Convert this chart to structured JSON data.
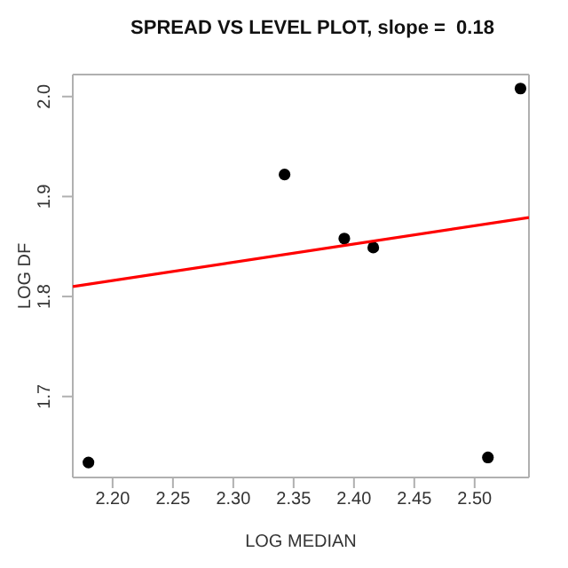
{
  "chart_data": {
    "type": "scatter",
    "title": "SPREAD VS LEVEL PLOT, slope =  0.18",
    "xlabel": "LOG MEDIAN",
    "ylabel": "LOG DF",
    "x": [
      2.18,
      2.3425,
      2.392,
      2.416,
      2.511,
      2.538
    ],
    "series": [
      {
        "color": "#000000",
        "marker": "circle",
        "values": [
          1.634,
          1.922,
          1.858,
          1.849,
          1.639,
          2.008
        ]
      },
      {
        "type": "line",
        "color": "#ff0000",
        "marker": "none",
        "x": [
          2.167,
          2.545
        ],
        "values": [
          1.81,
          1.879
        ]
      }
    ],
    "xlim": [
      2.167,
      2.545
    ],
    "ylim": [
      1.619,
      2.022
    ],
    "xticks": [
      {
        "value": 2.2,
        "label": "2.20"
      },
      {
        "value": 2.25,
        "label": "2.25"
      },
      {
        "value": 2.3,
        "label": "2.30"
      },
      {
        "value": 2.35,
        "label": "2.35"
      },
      {
        "value": 2.4,
        "label": "2.40"
      },
      {
        "value": 2.45,
        "label": "2.45"
      },
      {
        "value": 2.5,
        "label": "2.50"
      }
    ],
    "yticks": [
      1.7,
      1.8,
      1.9,
      {
        "value": 2,
        "label": "2.0"
      }
    ],
    "grid": false,
    "line_style": "solid"
  }
}
